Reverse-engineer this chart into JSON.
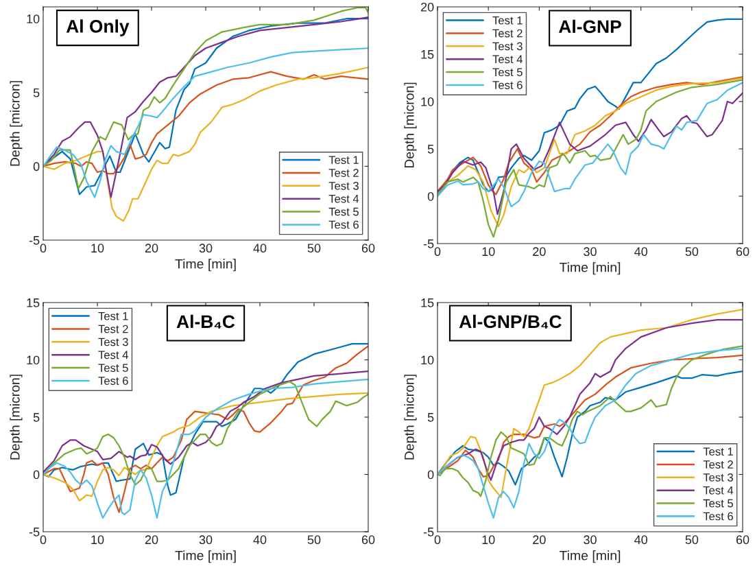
{
  "chart_data": [
    {
      "type": "line",
      "title": "Al Only",
      "xlabel": "Time [min]",
      "ylabel": "Depth [micron]",
      "xlim": [
        0,
        60
      ],
      "ylim": [
        -5,
        10.8
      ],
      "xticks": [
        0,
        10,
        20,
        30,
        40,
        50,
        60
      ],
      "yticks": [
        -5,
        0,
        5,
        10
      ],
      "legend": "bottom right",
      "series": [
        {
          "name": "Test 1",
          "color": "#0072bd",
          "x": [
            0,
            2,
            3.5,
            5,
            6.7,
            8,
            9.5,
            10.5,
            12.3,
            13.5,
            14.2,
            15.5,
            17,
            18.5,
            19.5,
            21.5,
            22.5,
            23.3,
            24.5,
            26,
            27,
            28,
            30,
            32,
            35,
            38,
            42,
            47,
            52,
            56,
            60
          ],
          "values": [
            0,
            0.6,
            1.0,
            0.5,
            -1.9,
            -1.4,
            -1.3,
            -0.6,
            0.7,
            -0.4,
            -0.4,
            0.8,
            2.2,
            0.8,
            0.3,
            1.6,
            1.2,
            1.3,
            3.8,
            5.2,
            5.6,
            6.6,
            7.0,
            8.0,
            8.8,
            9.2,
            9.5,
            9.7,
            9.7,
            10.0,
            10.0
          ]
        },
        {
          "name": "Test 2",
          "color": "#d95319",
          "x": [
            0,
            2,
            4,
            6,
            7,
            8,
            9,
            10,
            11,
            12,
            13,
            14,
            15,
            16,
            17,
            18,
            19,
            20,
            21,
            23,
            25,
            27,
            29,
            32,
            35,
            38,
            42,
            45,
            48,
            50,
            52,
            55,
            60
          ],
          "values": [
            0,
            0.2,
            0.3,
            0.2,
            0,
            0.3,
            0.2,
            -0.4,
            -0.3,
            -0.5,
            -0.5,
            0,
            0.6,
            1.5,
            0.5,
            0.6,
            0.8,
            1.6,
            2.2,
            2.8,
            3.4,
            4.3,
            4.9,
            5.5,
            5.9,
            6.0,
            6.4,
            6.1,
            5.9,
            6.2,
            5.9,
            6.1,
            5.9
          ]
        },
        {
          "name": "Test 3",
          "color": "#edb120",
          "x": [
            0,
            2,
            4,
            6,
            8,
            10,
            11,
            12,
            12.7,
            13.5,
            14.8,
            15.8,
            16.5,
            17.5,
            19,
            20,
            21,
            22,
            23,
            24,
            25,
            27,
            28,
            29,
            31,
            33,
            35,
            37,
            40,
            43,
            47,
            50,
            55,
            60
          ],
          "values": [
            0,
            -0.2,
            0.2,
            0.4,
            0.7,
            1.0,
            1.0,
            -1.3,
            -2.8,
            -3.4,
            -3.7,
            -3.0,
            -2.2,
            -2.2,
            -1.0,
            -0.2,
            0.4,
            0.2,
            0.2,
            0.8,
            0.7,
            1.0,
            1.5,
            2.3,
            3.0,
            4.0,
            4.2,
            4.5,
            5.1,
            5.5,
            5.9,
            6.0,
            6.3,
            6.7
          ]
        },
        {
          "name": "Test 4",
          "color": "#7e2f8e",
          "x": [
            0,
            2,
            3.5,
            5,
            6.5,
            7.7,
            8.7,
            10,
            11,
            12.5,
            14,
            15.5,
            17,
            18.5,
            20,
            21.5,
            23,
            24.5,
            26,
            28,
            30,
            33,
            36,
            40,
            45,
            50,
            55,
            60
          ],
          "values": [
            0,
            0.8,
            1.7,
            2.0,
            2.6,
            3.0,
            3.0,
            2.1,
            1.0,
            -2.1,
            0.5,
            3.3,
            3.7,
            4.4,
            5.0,
            5.7,
            6.0,
            6.1,
            6.7,
            7.5,
            8.0,
            8.4,
            8.8,
            9.2,
            9.4,
            9.6,
            9.8,
            10.1
          ]
        },
        {
          "name": "Test 5",
          "color": "#77ac30",
          "x": [
            0,
            1.5,
            3,
            5,
            6.5,
            7.5,
            9,
            10.5,
            11.5,
            13,
            14.5,
            15.7,
            16.5,
            17.5,
            18.5,
            19.5,
            20.5,
            21.5,
            22.5,
            24,
            26,
            28,
            30,
            33,
            37,
            40,
            45,
            50,
            55,
            58,
            59.5,
            60
          ],
          "values": [
            0,
            0.4,
            1.1,
            1.1,
            -1.5,
            -0.8,
            1.0,
            2.0,
            1.8,
            3.0,
            2.8,
            1.8,
            2.1,
            2.2,
            3.8,
            4.0,
            4.7,
            4.3,
            4.6,
            5.5,
            6.6,
            7.7,
            8.5,
            9.1,
            9.4,
            9.6,
            9.6,
            9.9,
            10.5,
            10.75,
            10.75,
            10.4
          ]
        },
        {
          "name": "Test 6",
          "color": "#4dbeee",
          "x": [
            0,
            1.5,
            2.5,
            4,
            5.5,
            7,
            8,
            9.5,
            10.5,
            11.5,
            12.5,
            13.5,
            15,
            16.5,
            17.5,
            18.5,
            20,
            21,
            22,
            24,
            26,
            28,
            30,
            34,
            38,
            42,
            46,
            50,
            55,
            60
          ],
          "values": [
            0,
            0.8,
            1.3,
            1.1,
            0.8,
            0.1,
            -1.0,
            -2.1,
            -1.0,
            0.5,
            1.4,
            1.0,
            0.8,
            2.0,
            2.7,
            3.5,
            3.4,
            3.3,
            3.7,
            4.6,
            5.4,
            6.1,
            6.3,
            6.7,
            7.0,
            7.4,
            7.7,
            7.8,
            7.9,
            8.0
          ]
        }
      ]
    },
    {
      "type": "line",
      "title": "Al-GNP",
      "xlabel": "Time [min]",
      "ylabel": "Depth [micron]",
      "xlim": [
        0,
        60
      ],
      "ylim": [
        -5,
        20
      ],
      "xticks": [
        0,
        10,
        20,
        30,
        40,
        50,
        60
      ],
      "yticks": [
        -5,
        0,
        5,
        10,
        15,
        20
      ],
      "legend": "top left",
      "series": [
        {
          "name": "Test 1",
          "color": "#0072bd",
          "x": [
            0,
            2,
            3,
            4.5,
            6,
            7,
            8,
            9,
            10,
            11,
            12,
            13.5,
            14.5,
            16,
            17,
            18.5,
            20,
            21,
            22.5,
            24,
            25.5,
            27,
            28,
            29.5,
            31,
            32,
            33.5,
            35,
            35.7,
            37,
            38.5,
            40,
            41.5,
            43,
            45,
            47,
            49,
            51,
            53,
            55,
            57,
            60
          ],
          "values": [
            0.3,
            1.8,
            2.7,
            3.6,
            4.1,
            3.8,
            2.5,
            1.2,
            0.5,
            0.8,
            2.0,
            2.1,
            3.0,
            4.0,
            4.3,
            3.8,
            4.8,
            6.7,
            7.0,
            7.5,
            9.0,
            9.3,
            10.3,
            11.3,
            11.6,
            11.0,
            10.0,
            9.5,
            9.2,
            10.5,
            12.0,
            12.0,
            13.0,
            14.0,
            14.6,
            15.5,
            16.5,
            17.5,
            18.4,
            18.6,
            18.7,
            18.7
          ]
        },
        {
          "name": "Test 2",
          "color": "#d95319",
          "x": [
            0,
            2,
            3,
            5,
            7,
            8.5,
            10,
            11,
            11.5,
            13,
            14,
            15.7,
            17,
            18.5,
            19.5,
            21,
            22.5,
            24,
            26,
            28,
            30,
            32,
            34,
            36,
            38,
            40,
            43,
            46,
            49,
            52,
            56,
            60
          ],
          "values": [
            0.5,
            1.8,
            2.8,
            3.5,
            4.1,
            3.2,
            1.2,
            0.4,
            0.2,
            1.8,
            3.5,
            5.0,
            3.5,
            2.8,
            1.5,
            2.5,
            3.8,
            4.2,
            4.8,
            5.5,
            6.8,
            7.5,
            8.5,
            9.6,
            10.5,
            11.0,
            11.5,
            11.8,
            12.0,
            11.8,
            12.2,
            12.6
          ]
        },
        {
          "name": "Test 3",
          "color": "#edb120",
          "x": [
            0,
            2,
            4,
            6,
            7.5,
            9,
            10.5,
            12,
            13,
            14.5,
            16,
            17,
            18.5,
            19.5,
            21,
            23,
            24,
            25.5,
            27,
            29,
            31,
            33,
            35,
            37,
            40,
            43,
            46,
            50,
            55,
            60
          ],
          "values": [
            0.2,
            1.5,
            2.2,
            3.2,
            2.8,
            1.5,
            -1.5,
            -3.2,
            -2.0,
            1.0,
            2.8,
            2.5,
            3.2,
            2.5,
            3.0,
            6.0,
            4.5,
            4.5,
            6.5,
            6.9,
            7.5,
            8.5,
            9.0,
            9.8,
            10.5,
            11.2,
            11.6,
            11.9,
            12.0,
            12.5
          ]
        },
        {
          "name": "Test 4",
          "color": "#7e2f8e",
          "x": [
            0,
            1.5,
            3,
            5,
            7,
            8.5,
            9.5,
            11,
            11.8,
            13,
            14.5,
            15.5,
            17,
            19,
            20.5,
            22,
            24,
            26,
            27.5,
            30,
            33,
            35,
            37,
            38.5,
            39.5,
            41,
            42,
            43.5,
            44.5,
            46,
            48,
            49,
            50,
            51,
            53,
            54,
            56,
            57,
            58,
            60
          ],
          "values": [
            0.5,
            1.2,
            2.5,
            3.7,
            3.3,
            3.6,
            3.0,
            0.5,
            -1.9,
            0.5,
            5.0,
            5.5,
            4.0,
            2.8,
            3.2,
            5.0,
            7.8,
            5.5,
            4.8,
            5.3,
            6.5,
            7.5,
            7.8,
            6.5,
            5.8,
            7.0,
            8.1,
            7.0,
            6.3,
            6.8,
            8.2,
            8.5,
            7.8,
            7.7,
            6.3,
            6.5,
            8.0,
            10.0,
            9.8,
            10.9
          ]
        },
        {
          "name": "Test 5",
          "color": "#77ac30",
          "x": [
            0,
            2,
            4,
            5,
            7,
            8,
            9,
            10,
            11,
            12,
            13.5,
            15,
            16,
            18,
            19,
            20,
            21,
            22,
            23.5,
            24.5,
            25,
            26,
            27,
            29,
            30,
            31,
            32,
            34,
            35,
            36.5,
            37.5,
            39,
            40,
            41,
            43,
            47,
            50,
            55,
            60
          ],
          "values": [
            0.1,
            1.5,
            1.8,
            1.5,
            2.0,
            1.5,
            -0.5,
            -3.0,
            -4.3,
            -2.5,
            1.5,
            2.8,
            1.2,
            1.0,
            0.8,
            1.2,
            1.0,
            3.0,
            3.3,
            4.5,
            4.3,
            3.5,
            4.5,
            4.8,
            4.2,
            4.3,
            3.8,
            4.0,
            5.0,
            6.5,
            5.5,
            6.0,
            7.0,
            9.0,
            10.0,
            11.0,
            11.5,
            11.8,
            12.3
          ]
        },
        {
          "name": "Test 6",
          "color": "#4dbeee",
          "x": [
            0,
            2,
            4,
            5,
            7,
            8,
            9,
            10,
            12,
            13,
            14.5,
            16,
            17,
            18.5,
            20,
            21,
            22,
            23,
            25,
            26,
            27,
            29,
            30.5,
            32,
            33.5,
            34.5,
            36,
            37,
            38,
            39.5,
            40.5,
            42,
            43.5,
            44.5,
            46,
            47,
            48,
            49,
            51,
            53,
            55,
            57,
            60
          ],
          "values": [
            0,
            1.2,
            1.6,
            1.2,
            1.3,
            1.5,
            0.8,
            0.5,
            1.8,
            1.0,
            -1.1,
            -0.5,
            0.5,
            2.5,
            3.7,
            3.5,
            2.0,
            0.5,
            0.8,
            0.8,
            1.8,
            3.3,
            3.5,
            4.5,
            5.5,
            4.8,
            3.0,
            2.3,
            4.5,
            5.3,
            6.5,
            5.5,
            5.3,
            5.0,
            6.5,
            7.4,
            7.0,
            7.8,
            8.0,
            9.8,
            10.2,
            11.2,
            12.0
          ]
        }
      ]
    },
    {
      "type": "line",
      "title": "Al-B₄C",
      "xlabel": "Time [min]",
      "ylabel": "Depth [micron]",
      "xlim": [
        0,
        60
      ],
      "ylim": [
        -5,
        15
      ],
      "xticks": [
        0,
        10,
        20,
        30,
        40,
        50,
        60
      ],
      "yticks": [
        -5,
        0,
        5,
        10,
        15
      ],
      "legend": "top left",
      "series": [
        {
          "name": "Test 1",
          "color": "#0072bd",
          "x": [
            0,
            1,
            2,
            3.5,
            5.5,
            7,
            9,
            10,
            11,
            12,
            13.5,
            14.5,
            16,
            17,
            18.5,
            19.5,
            21,
            22,
            23,
            23.5,
            24.5,
            26,
            28,
            29.5,
            31,
            32,
            33,
            34,
            35.5,
            37,
            39,
            40,
            41,
            42,
            43,
            44,
            45,
            47,
            50,
            54,
            57,
            60
          ],
          "values": [
            0,
            -0.2,
            0.4,
            0.6,
            0.4,
            0.7,
            0.9,
            0.8,
            1.0,
            1.0,
            -0.6,
            -0.5,
            -0.4,
            2.2,
            2.7,
            1.7,
            1.9,
            1.7,
            -1.0,
            -1.8,
            -1.6,
            1.5,
            3.5,
            4.6,
            4.6,
            4.6,
            4.2,
            4.4,
            4.8,
            6.0,
            7.5,
            7.5,
            7.4,
            7.1,
            7.5,
            8.0,
            8.7,
            9.8,
            10.5,
            11.0,
            11.4,
            11.4
          ]
        },
        {
          "name": "Test 2",
          "color": "#d95319",
          "x": [
            0,
            2,
            3,
            4.5,
            5,
            6,
            6.7,
            7.5,
            8,
            9,
            10,
            11,
            12,
            13,
            14,
            15,
            16,
            17,
            18,
            19,
            20,
            21,
            22,
            23,
            24,
            25.5,
            26.5,
            28,
            29.5,
            31,
            32.5,
            34,
            35,
            36,
            37,
            38,
            39,
            40,
            42,
            44,
            45,
            46,
            48,
            50,
            52,
            54,
            56,
            58,
            60
          ],
          "values": [
            0,
            0.5,
            0.5,
            -1.0,
            -1.5,
            -1.3,
            -1.2,
            0,
            1.0,
            1.2,
            0.8,
            1.0,
            0,
            -2.0,
            -3.3,
            -1.5,
            0.5,
            0.8,
            0.5,
            0.8,
            0.5,
            1.0,
            1.5,
            1.2,
            1.5,
            3.0,
            4.8,
            5.5,
            5.4,
            5.3,
            5.2,
            4.8,
            5.2,
            5.7,
            5.5,
            4.5,
            3.8,
            3.7,
            4.5,
            5.5,
            6.1,
            6.2,
            7.8,
            8.2,
            8.5,
            9.3,
            9.7,
            10.5,
            11.2
          ]
        },
        {
          "name": "Test 3",
          "color": "#edb120",
          "x": [
            0,
            2,
            4,
            5.5,
            6.7,
            8,
            9,
            10,
            11,
            12,
            13,
            14,
            15,
            16,
            17,
            18,
            19,
            20,
            21,
            22,
            24,
            25,
            27,
            29,
            31,
            35,
            40,
            45,
            50,
            55,
            60
          ],
          "values": [
            0,
            -0.3,
            -0.7,
            -1.3,
            -2.3,
            -1.8,
            -1.9,
            -0.6,
            0.4,
            0.6,
            0.4,
            -0.1,
            0.6,
            0.3,
            0.0,
            0.4,
            0.4,
            1.5,
            2.5,
            3.3,
            3.7,
            4.0,
            4.3,
            5.0,
            5.5,
            6.0,
            6.3,
            6.6,
            6.8,
            7.0,
            7.1
          ]
        },
        {
          "name": "Test 4",
          "color": "#7e2f8e",
          "x": [
            0,
            2,
            3.5,
            5,
            6,
            7.5,
            9,
            10,
            11,
            12.5,
            14,
            15.5,
            16,
            17,
            18,
            19,
            20,
            21,
            22.5,
            23.5,
            25,
            26.5,
            27.5,
            28.5,
            30,
            31,
            32,
            33,
            34.5,
            36,
            37,
            39,
            41,
            44,
            47,
            50,
            55,
            60
          ],
          "values": [
            0.2,
            1.2,
            2.5,
            3.0,
            3.0,
            2.5,
            2.2,
            2.0,
            1.3,
            1.4,
            2.0,
            1.5,
            1.6,
            1.3,
            1.6,
            1.7,
            2.6,
            2.4,
            1.3,
            0.9,
            1.5,
            2.5,
            2.8,
            2.5,
            2.8,
            3.3,
            4.2,
            4.5,
            5.5,
            5.9,
            6.3,
            6.8,
            7.5,
            8.0,
            8.3,
            8.6,
            8.8,
            9.0
          ]
        },
        {
          "name": "Test 5",
          "color": "#77ac30",
          "x": [
            0,
            2,
            4,
            6,
            7,
            8,
            9,
            10,
            11,
            12,
            13,
            14,
            15,
            16,
            17,
            18,
            19,
            20,
            21,
            22,
            23,
            24,
            25,
            26,
            27,
            28,
            29,
            30,
            31,
            32,
            33,
            34,
            36,
            38,
            40,
            43,
            45.5,
            46.5,
            48,
            49,
            50.5,
            51.5,
            53,
            54,
            56,
            58,
            59,
            60
          ],
          "values": [
            0,
            1.0,
            1.8,
            2.2,
            2.3,
            1.8,
            2.0,
            2.3,
            3.3,
            3.5,
            3.2,
            2.5,
            1.5,
            0.0,
            -0.9,
            -0.5,
            0.5,
            0.5,
            -0.6,
            -0.6,
            -0.5,
            0.0,
            0.5,
            1.5,
            2.5,
            3.0,
            3.5,
            3.5,
            2.8,
            2.5,
            2.7,
            4.0,
            5.5,
            6.3,
            7.0,
            7.7,
            8.1,
            7.8,
            6.0,
            4.8,
            4.2,
            4.8,
            5.5,
            6.4,
            6.0,
            6.3,
            6.7,
            7.0
          ]
        },
        {
          "name": "Test 6",
          "color": "#4dbeee",
          "x": [
            0,
            1,
            2.5,
            4,
            5,
            6,
            7,
            8,
            9,
            10,
            11,
            12,
            13,
            14,
            14.5,
            15,
            16,
            17,
            18,
            19,
            20,
            21,
            22,
            23,
            24,
            25.5,
            27,
            28,
            30,
            32,
            35,
            38,
            42,
            46,
            50,
            55,
            60
          ],
          "values": [
            0,
            0.5,
            1.0,
            0.7,
            0.2,
            -0.5,
            -0.9,
            -0.5,
            -1.0,
            -2.5,
            -3.8,
            -3.0,
            -2.3,
            -1.8,
            -3.3,
            -3.5,
            -3.1,
            -0.5,
            0.4,
            -0.3,
            -1.8,
            -3.8,
            -1.5,
            -0.5,
            1.0,
            3.5,
            3.5,
            3.8,
            5.0,
            5.7,
            6.5,
            7.0,
            7.5,
            7.6,
            7.9,
            8.1,
            8.3
          ]
        }
      ]
    },
    {
      "type": "line",
      "title": "Al-GNP/B₄C",
      "xlabel": "Time [min]",
      "ylabel": "Depth [micron]",
      "xlim": [
        0,
        60
      ],
      "ylim": [
        -5,
        15
      ],
      "xticks": [
        0,
        10,
        20,
        30,
        40,
        50,
        60
      ],
      "yticks": [
        -5,
        0,
        5,
        10,
        15
      ],
      "legend": "bottom right",
      "series": [
        {
          "name": "Test 1",
          "color": "#0072bd",
          "x": [
            0,
            2,
            3.5,
            5,
            6,
            7.5,
            9,
            10,
            11,
            12,
            13,
            14,
            15.3,
            16.5,
            18,
            19,
            20,
            21,
            22,
            23,
            24.5,
            25.5,
            26.5,
            27.5,
            29,
            30,
            32,
            33,
            35,
            37,
            40,
            43,
            47,
            48,
            50,
            52,
            55,
            57,
            60
          ],
          "values": [
            0,
            1.2,
            2.0,
            2.5,
            2.2,
            2.1,
            1.9,
            1.5,
            0.8,
            1.0,
            0.7,
            0.3,
            -0.9,
            0.5,
            1.0,
            1.5,
            1.8,
            3.2,
            2.8,
            1.5,
            -0.2,
            1.5,
            3.5,
            5.0,
            5.5,
            6.0,
            6.3,
            6.7,
            6.5,
            7.2,
            7.6,
            8.0,
            8.6,
            8.4,
            8.4,
            8.7,
            8.6,
            8.8,
            9.0
          ]
        },
        {
          "name": "Test 2",
          "color": "#d95319",
          "x": [
            0,
            2,
            4,
            5.5,
            7,
            8,
            9,
            10,
            11,
            12,
            13,
            14,
            15,
            17,
            19,
            20,
            21,
            23,
            24,
            25,
            27,
            29,
            31,
            33,
            35,
            38,
            42,
            46,
            50,
            55,
            60
          ],
          "values": [
            0,
            0.6,
            1.2,
            2.1,
            1.5,
            0.5,
            -0.2,
            -0.1,
            0.7,
            1.3,
            2.8,
            3.3,
            3.5,
            3.5,
            3.2,
            3.3,
            4.2,
            4.4,
            4.2,
            4.5,
            5.5,
            6.5,
            7.0,
            7.8,
            8.5,
            9.3,
            9.7,
            10.0,
            10.1,
            10.2,
            10.4
          ]
        },
        {
          "name": "Test 3",
          "color": "#edb120",
          "x": [
            0,
            1,
            2.5,
            4,
            5,
            6.5,
            7.5,
            9,
            10,
            11,
            12.5,
            13.5,
            15,
            16,
            17,
            18,
            19,
            20,
            21,
            22.5,
            24,
            26,
            28,
            30,
            32,
            34,
            37,
            40,
            45,
            50,
            55,
            60
          ],
          "values": [
            0,
            0.5,
            1.6,
            1.9,
            2.3,
            3.3,
            3.2,
            1.5,
            -0.5,
            -1.2,
            -2.0,
            0.5,
            4.0,
            3.7,
            3.3,
            4.0,
            5.3,
            6.5,
            7.8,
            8.0,
            8.3,
            8.8,
            9.5,
            10.5,
            11.5,
            12.0,
            12.3,
            12.6,
            12.8,
            13.5,
            14.0,
            14.4
          ]
        },
        {
          "name": "Test 4",
          "color": "#7e2f8e",
          "x": [
            0,
            2,
            4,
            6,
            7.5,
            8.5,
            10,
            10.5,
            12,
            13,
            14.5,
            16,
            17,
            18,
            19,
            20,
            21,
            22,
            23.5,
            25,
            26,
            27,
            28,
            30,
            31,
            32,
            34,
            35,
            37,
            40,
            45,
            50,
            55,
            60
          ],
          "values": [
            0,
            0.8,
            1.5,
            1.8,
            2.2,
            2.0,
            0.0,
            -0.5,
            1.5,
            2.5,
            2.8,
            3.0,
            3.0,
            3.6,
            4.0,
            5.0,
            4.2,
            4.0,
            3.5,
            4.3,
            5.0,
            6.0,
            7.0,
            8.0,
            8.8,
            8.5,
            9.0,
            10.0,
            11.0,
            12.0,
            12.8,
            13.2,
            13.5,
            13.5
          ]
        },
        {
          "name": "Test 5",
          "color": "#77ac30",
          "x": [
            0,
            0.5,
            1.5,
            3,
            4,
            5,
            6,
            7,
            8,
            8.5,
            9.5,
            10.5,
            11.5,
            12.5,
            13.5,
            14.5,
            16,
            17,
            18,
            19,
            20,
            21,
            22,
            23.5,
            24.5,
            25.5,
            26.5,
            27.5,
            28.5,
            29.5,
            31,
            32,
            34,
            35,
            37,
            38,
            40,
            42,
            43,
            45,
            46,
            47,
            48,
            50,
            53,
            56,
            60
          ],
          "values": [
            0,
            -0.1,
            0.5,
            0.5,
            0.3,
            -0.3,
            -0.7,
            -1.4,
            -1.6,
            -1.9,
            -0.5,
            1.5,
            3.0,
            3.7,
            3.3,
            2.3,
            2.0,
            1.8,
            0.8,
            0.9,
            2.0,
            3.2,
            3.2,
            2.7,
            2.5,
            3.5,
            4.8,
            5.5,
            5.2,
            5.5,
            5.8,
            6.0,
            6.8,
            6.3,
            5.5,
            5.5,
            5.8,
            6.5,
            5.9,
            6.1,
            7.5,
            8.5,
            9.2,
            10.0,
            10.5,
            10.9,
            11.2
          ]
        },
        {
          "name": "Test 6",
          "color": "#4dbeee",
          "x": [
            0,
            2,
            4,
            5,
            6,
            7,
            8,
            9,
            10,
            11,
            12,
            13,
            14,
            15,
            16,
            17,
            18,
            19,
            20,
            21,
            22,
            23,
            24,
            25,
            26,
            27,
            28,
            29,
            30,
            31,
            33,
            35,
            37,
            39,
            42,
            46,
            50,
            55,
            60
          ],
          "values": [
            0,
            0.8,
            1.5,
            1.7,
            1.5,
            1.2,
            0.5,
            -1.0,
            -2.5,
            -3.8,
            -2.0,
            -1.5,
            -2.0,
            -2.9,
            -1.5,
            1.0,
            2.7,
            1.8,
            1.4,
            2.0,
            3.2,
            4.2,
            4.8,
            4.5,
            4.0,
            3.2,
            2.7,
            2.8,
            4.0,
            5.0,
            6.0,
            6.5,
            7.8,
            8.8,
            9.5,
            10.0,
            10.5,
            10.8,
            11.0
          ]
        }
      ]
    }
  ]
}
